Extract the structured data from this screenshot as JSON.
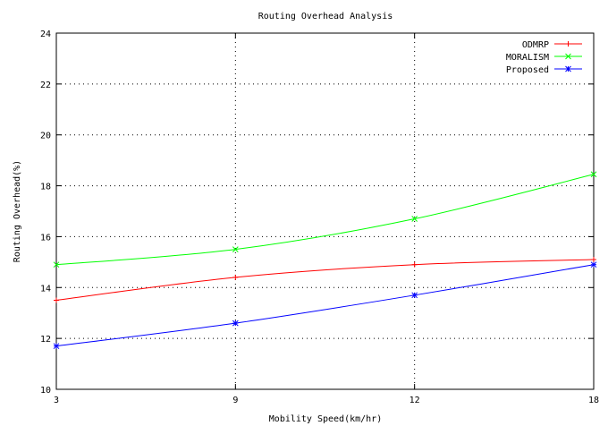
{
  "chart_data": {
    "type": "line",
    "title": "Routing Overhead Analysis",
    "xlabel": "Mobility Speed(km/hr)",
    "ylabel": "Routing Overhead(%)",
    "x": [
      3,
      9,
      12,
      18
    ],
    "x_tick_labels": [
      "3",
      "9",
      "12",
      "18"
    ],
    "ylim": [
      10,
      24
    ],
    "y_ticks": [
      10,
      12,
      14,
      16,
      18,
      20,
      22,
      24
    ],
    "grid": true,
    "legend_position": "top-right",
    "series": [
      {
        "name": "ODMRP",
        "color": "#ff0000",
        "marker": "+",
        "values": [
          13.5,
          14.4,
          14.9,
          15.1
        ]
      },
      {
        "name": "MORALISM",
        "color": "#00ff00",
        "marker": "x",
        "values": [
          14.9,
          15.5,
          16.7,
          18.45
        ]
      },
      {
        "name": "Proposed",
        "color": "#0000ff",
        "marker": "*",
        "values": [
          11.7,
          12.6,
          13.7,
          14.9
        ]
      }
    ]
  }
}
